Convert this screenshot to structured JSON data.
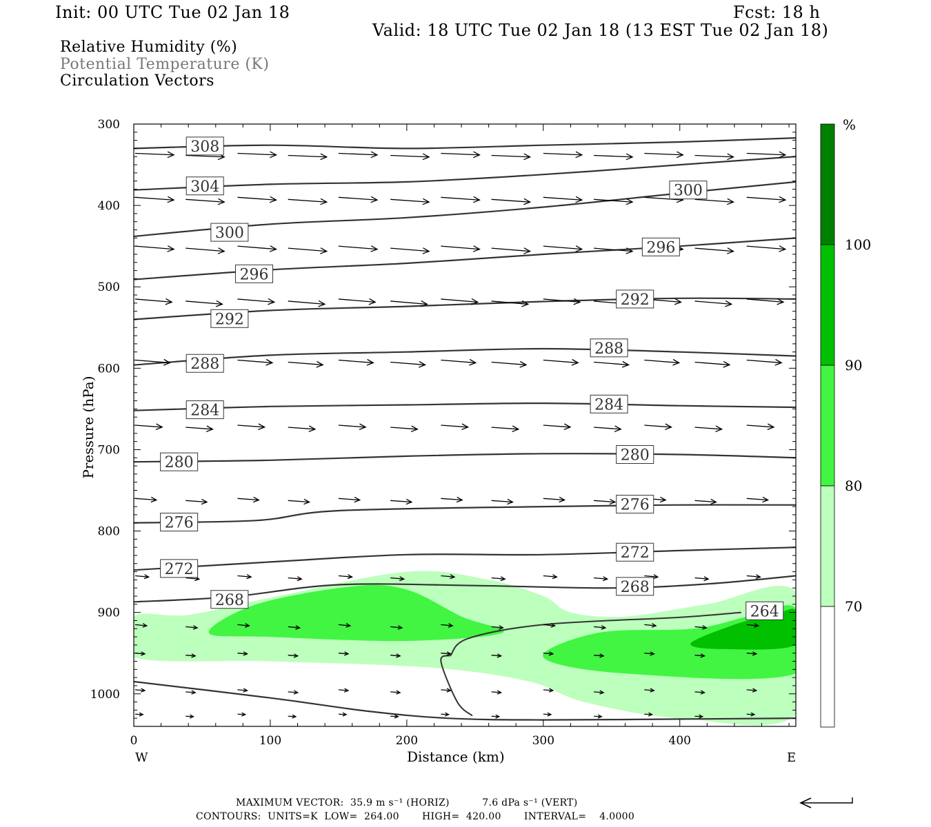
{
  "header": {
    "init": "Init: 00 UTC Tue 02 Jan 18",
    "fcst": "Fcst:   18 h",
    "valid": "Valid: 18 UTC Tue 02 Jan 18 (13 EST Tue 02 Jan 18)"
  },
  "legend": {
    "rh": "Relative Humidity (%)",
    "theta": "Potential Temperature (K)",
    "vectors": "Circulation Vectors"
  },
  "colors": {
    "rh_70": "#bdffbd",
    "rh_80": "#42f542",
    "rh_90": "#00c000",
    "rh_100": "#008000",
    "contour": "#333333",
    "theta_legend_text": "#777777"
  },
  "footer": {
    "line1": "MAXIMUM VECTOR:  35.9 m s⁻¹ (HORIZ)          7.6 dPa s⁻¹ (VERT)",
    "line2": "CONTOURS:  UNITS=K  LOW=  264.00       HIGH=  420.00       INTERVAL=    4.0000"
  },
  "chart_data": {
    "type": "cross-section",
    "xlabel": "Distance (km)",
    "ylabel": "Pressure (hPa)",
    "xlim": [
      0,
      485
    ],
    "ylim": [
      1040,
      300
    ],
    "xticks": [
      0,
      100,
      200,
      300,
      400
    ],
    "yticks": [
      300,
      400,
      500,
      600,
      700,
      800,
      900,
      1000
    ],
    "x_end_labels": {
      "left": "W",
      "right": "E"
    },
    "colorbar": {
      "unit": "%",
      "levels": [
        70,
        80,
        90,
        100
      ],
      "colors": [
        "#ffffff",
        "#bdffbd",
        "#42f542",
        "#00c000",
        "#008000"
      ]
    },
    "theta_contours": [
      {
        "level": 308,
        "points": [
          [
            0,
            330
          ],
          [
            100,
            326
          ],
          [
            200,
            330
          ],
          [
            300,
            326
          ],
          [
            400,
            322
          ],
          [
            485,
            317
          ]
        ],
        "labels": [
          [
            38,
            327
          ]
        ]
      },
      {
        "level": 304,
        "points": [
          [
            0,
            381
          ],
          [
            100,
            374
          ],
          [
            200,
            371
          ],
          [
            300,
            362
          ],
          [
            400,
            350
          ],
          [
            485,
            340
          ]
        ],
        "labels": [
          [
            38,
            376
          ]
        ]
      },
      {
        "level": 300,
        "points": [
          [
            0,
            438
          ],
          [
            100,
            423
          ],
          [
            200,
            415
          ],
          [
            300,
            402
          ],
          [
            400,
            385
          ],
          [
            485,
            371
          ]
        ],
        "labels": [
          [
            56,
            433
          ],
          [
            392,
            381
          ]
        ]
      },
      {
        "level": 296,
        "points": [
          [
            0,
            491
          ],
          [
            100,
            479
          ],
          [
            200,
            471
          ],
          [
            300,
            460
          ],
          [
            400,
            450
          ],
          [
            485,
            440
          ]
        ],
        "labels": [
          [
            74,
            484
          ],
          [
            372,
            451
          ]
        ]
      },
      {
        "level": 292,
        "points": [
          [
            0,
            540
          ],
          [
            100,
            529
          ],
          [
            200,
            524
          ],
          [
            300,
            518
          ],
          [
            400,
            514
          ],
          [
            485,
            515
          ]
        ],
        "labels": [
          [
            56,
            539
          ],
          [
            353,
            515
          ]
        ]
      },
      {
        "level": 288,
        "points": [
          [
            0,
            596
          ],
          [
            100,
            584
          ],
          [
            200,
            580
          ],
          [
            300,
            576
          ],
          [
            400,
            580
          ],
          [
            485,
            585
          ]
        ],
        "labels": [
          [
            38,
            594
          ],
          [
            334,
            575
          ]
        ]
      },
      {
        "level": 284,
        "points": [
          [
            0,
            652
          ],
          [
            100,
            647
          ],
          [
            200,
            645
          ],
          [
            300,
            643
          ],
          [
            400,
            646
          ],
          [
            485,
            648
          ]
        ],
        "labels": [
          [
            38,
            651
          ],
          [
            334,
            644
          ]
        ]
      },
      {
        "level": 280,
        "points": [
          [
            0,
            715
          ],
          [
            100,
            713
          ],
          [
            200,
            708
          ],
          [
            300,
            705
          ],
          [
            400,
            706
          ],
          [
            485,
            710
          ]
        ],
        "labels": [
          [
            19,
            715
          ],
          [
            353,
            706
          ]
        ]
      },
      {
        "level": 276,
        "points": [
          [
            0,
            790
          ],
          [
            90,
            787
          ],
          [
            150,
            775
          ],
          [
            300,
            770
          ],
          [
            400,
            768
          ],
          [
            485,
            768
          ]
        ],
        "labels": [
          [
            19,
            789
          ],
          [
            353,
            767
          ]
        ]
      },
      {
        "level": 272,
        "points": [
          [
            0,
            848
          ],
          [
            100,
            838
          ],
          [
            200,
            829
          ],
          [
            300,
            829
          ],
          [
            400,
            824
          ],
          [
            485,
            820
          ]
        ],
        "labels": [
          [
            19,
            846
          ],
          [
            353,
            826
          ]
        ]
      },
      {
        "level": 268,
        "points": [
          [
            0,
            887
          ],
          [
            70,
            881
          ],
          [
            150,
            866
          ],
          [
            250,
            867
          ],
          [
            350,
            870
          ],
          [
            420,
            865
          ],
          [
            485,
            855
          ]
        ],
        "labels": [
          [
            56,
            884
          ],
          [
            353,
            868
          ]
        ]
      },
      {
        "level": 264,
        "points": [
          [
            0,
            985
          ],
          [
            100,
            1005
          ],
          [
            170,
            1021
          ],
          [
            230,
            1030
          ],
          [
            300,
            1032
          ],
          [
            400,
            1031
          ],
          [
            485,
            1030
          ]
        ],
        "labels": [
          [
            448,
            898
          ]
        ]
      }
    ],
    "tropopause_like_line": [
      [
        232,
        953
      ],
      [
        225,
        960
      ],
      [
        237,
        1010
      ],
      [
        248,
        1027
      ]
    ],
    "inner_line": [
      [
        232,
        953
      ],
      [
        245,
        932
      ],
      [
        300,
        915
      ],
      [
        400,
        906
      ],
      [
        445,
        900
      ]
    ],
    "rh_regions": [
      {
        "min_rh": 70,
        "polygon": [
          [
            0,
            905
          ],
          [
            40,
            903
          ],
          [
            100,
            882
          ],
          [
            200,
            850
          ],
          [
            260,
            860
          ],
          [
            300,
            880
          ],
          [
            320,
            900
          ],
          [
            360,
            905
          ],
          [
            420,
            890
          ],
          [
            485,
            875
          ],
          [
            485,
            1025
          ],
          [
            400,
            1030
          ],
          [
            330,
            1010
          ],
          [
            290,
            985
          ],
          [
            220,
            968
          ],
          [
            100,
            960
          ],
          [
            0,
            955
          ]
        ]
      },
      {
        "min_rh": 80,
        "polygon": [
          [
            55,
            925
          ],
          [
            90,
            890
          ],
          [
            160,
            868
          ],
          [
            200,
            872
          ],
          [
            240,
            905
          ],
          [
            270,
            925
          ],
          [
            200,
            935
          ],
          [
            100,
            930
          ]
        ]
      },
      {
        "min_rh": 80,
        "polygon": [
          [
            300,
            955
          ],
          [
            340,
            925
          ],
          [
            410,
            920
          ],
          [
            450,
            905
          ],
          [
            485,
            895
          ],
          [
            485,
            975
          ],
          [
            360,
            975
          ]
        ]
      },
      {
        "min_rh": 90,
        "polygon": [
          [
            408,
            938
          ],
          [
            440,
            915
          ],
          [
            470,
            902
          ],
          [
            485,
            898
          ],
          [
            485,
            940
          ],
          [
            430,
            945
          ]
        ]
      }
    ],
    "vector_rows": [
      {
        "p": 336,
        "u": 1.0,
        "w": 0.04
      },
      {
        "p": 390,
        "u": 1.0,
        "w": 0.07
      },
      {
        "p": 450,
        "u": 1.0,
        "w": 0.08
      },
      {
        "p": 515,
        "u": 0.95,
        "w": 0.08
      },
      {
        "p": 590,
        "u": 0.9,
        "w": 0.07
      },
      {
        "p": 670,
        "u": 0.7,
        "w": 0.05
      },
      {
        "p": 760,
        "u": 0.55,
        "w": 0.04
      },
      {
        "p": 855,
        "u": 0.35,
        "w": 0.03
      },
      {
        "p": 915,
        "u": 0.3,
        "w": 0.03
      },
      {
        "p": 950,
        "u": 0.25,
        "w": 0.02
      },
      {
        "p": 995,
        "u": 0.25,
        "w": 0.02
      },
      {
        "p": 1025,
        "u": 0.2,
        "w": 0.01
      }
    ],
    "vector_x": [
      0,
      37,
      75,
      112,
      149,
      187,
      224,
      261,
      299,
      336,
      373,
      410,
      448
    ]
  }
}
